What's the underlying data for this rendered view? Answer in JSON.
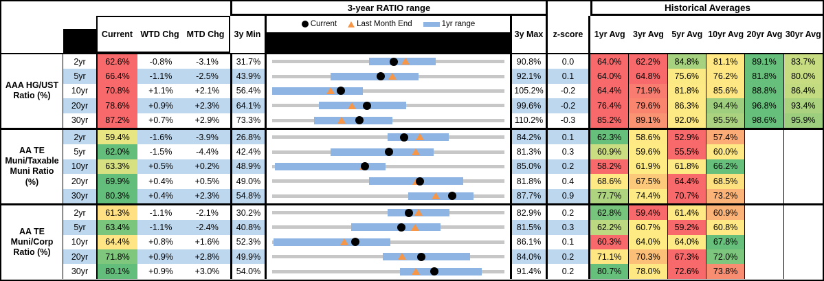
{
  "header": {
    "ratio_range_title": "3-year RATIO range",
    "historical_title": "Historical Averages",
    "col_current": "Current",
    "col_wtd": "WTD Chg",
    "col_mtd": "MTD Chg",
    "col_3y_min": "3y Min",
    "col_3y_max": "3y Max",
    "col_zscore": "z-score",
    "avg_cols": [
      "1yr Avg",
      "3yr Avg",
      "5yr Avg",
      "10yr Avg",
      "20yr Avg",
      "30yr Avg"
    ]
  },
  "legend": [
    {
      "marker": "black-dot",
      "label": "Current"
    },
    {
      "marker": "orange-triangle",
      "label": "Last Month End"
    },
    {
      "marker": "blue-bar",
      "label": "1yr range"
    }
  ],
  "colors": {
    "row_banding": "#BDD7EE",
    "range_line": "#C7C7C7",
    "one_year_bar": "#8DB4E2",
    "current_dot": "#000000",
    "last_month_triangle": "#F79646"
  },
  "chart_data": {
    "type": "table",
    "note": "Each row embeds a dot-range plot: gray line spans 3y Min..3y Max, blue bar is 1yr range, black dot is Current, orange triangle is Last Month End. Numeric chart values are in percent.",
    "sections": [
      {
        "label": "AAA HG/UST Ratio (%)",
        "label_lines": [
          "AAA HG/UST",
          "Ratio (%)"
        ],
        "rows": [
          {
            "tenor": "2yr",
            "current": "62.6%",
            "current_color": "#F8696B",
            "wtd": "-0.8%",
            "mtd": "-3.1%",
            "min3y": "31.7%",
            "max3y": "90.8%",
            "zscore": "0.0",
            "chart": {
              "min": 31.7,
              "max": 90.8,
              "lo": 56.3,
              "hi": 73.3,
              "dot": 62.6,
              "tri": 65.7
            },
            "avgs": [
              {
                "t": "64.0%",
                "c": "#F8696B"
              },
              {
                "t": "62.2%",
                "c": "#F8696B"
              },
              {
                "t": "84.8%",
                "c": "#A6D17F"
              },
              {
                "t": "81.1%",
                "c": "#FFE884"
              },
              {
                "t": "89.1%",
                "c": "#66C07B"
              },
              {
                "t": "83.7%",
                "c": "#C7DC81"
              }
            ]
          },
          {
            "tenor": "5yr",
            "current": "66.4%",
            "current_color": "#F8696B",
            "wtd": "-1.1%",
            "mtd": "-2.5%",
            "min3y": "43.9%",
            "max3y": "92.1%",
            "zscore": "0.1",
            "chart": {
              "min": 43.9,
              "max": 92.1,
              "lo": 56.0,
              "hi": 74.3,
              "dot": 66.4,
              "tri": 68.9
            },
            "avgs": [
              {
                "t": "64.0%",
                "c": "#F8696B"
              },
              {
                "t": "64.8%",
                "c": "#F8696B"
              },
              {
                "t": "75.6%",
                "c": "#FBE983"
              },
              {
                "t": "76.2%",
                "c": "#FFE884"
              },
              {
                "t": "81.8%",
                "c": "#66C07B"
              },
              {
                "t": "80.0%",
                "c": "#C7DC81"
              }
            ]
          },
          {
            "tenor": "10yr",
            "current": "70.8%",
            "current_color": "#F8696B",
            "wtd": "+1.1%",
            "mtd": "+2.1%",
            "min3y": "56.4%",
            "max3y": "105.2%",
            "zscore": "-0.2",
            "chart": {
              "min": 56.4,
              "max": 105.2,
              "lo": 56.4,
              "hi": 75.5,
              "dot": 70.8,
              "tri": 68.7
            },
            "avgs": [
              {
                "t": "64.4%",
                "c": "#F8696B"
              },
              {
                "t": "71.9%",
                "c": "#F87D70"
              },
              {
                "t": "81.8%",
                "c": "#FDEA84"
              },
              {
                "t": "85.6%",
                "c": "#FFE884"
              },
              {
                "t": "88.8%",
                "c": "#66C07B"
              },
              {
                "t": "86.4%",
                "c": "#C2DA80"
              }
            ]
          },
          {
            "tenor": "20yr",
            "current": "78.6%",
            "current_color": "#F8696B",
            "wtd": "+0.9%",
            "mtd": "+2.3%",
            "min3y": "64.1%",
            "max3y": "99.6%",
            "zscore": "-0.2",
            "chart": {
              "min": 64.1,
              "max": 99.6,
              "lo": 71.2,
              "hi": 84.6,
              "dot": 78.6,
              "tri": 76.3
            },
            "avgs": [
              {
                "t": "76.4%",
                "c": "#F8696B"
              },
              {
                "t": "79.6%",
                "c": "#F9856F"
              },
              {
                "t": "86.3%",
                "c": "#FDEA84"
              },
              {
                "t": "94.4%",
                "c": "#9FCF7E"
              },
              {
                "t": "96.8%",
                "c": "#66C07B"
              },
              {
                "t": "93.4%",
                "c": "#AAD27F"
              }
            ]
          },
          {
            "tenor": "30yr",
            "current": "87.2%",
            "current_color": "#F8696B",
            "wtd": "+0.7%",
            "mtd": "+2.9%",
            "min3y": "73.3%",
            "max3y": "110.2%",
            "zscore": "-0.3",
            "chart": {
              "min": 73.3,
              "max": 110.2,
              "lo": 80.0,
              "hi": 92.4,
              "dot": 87.2,
              "tri": 84.3
            },
            "avgs": [
              {
                "t": "85.2%",
                "c": "#F8696B"
              },
              {
                "t": "89.1%",
                "c": "#FA9372"
              },
              {
                "t": "92.0%",
                "c": "#FDEA84"
              },
              {
                "t": "95.5%",
                "c": "#ABD37F"
              },
              {
                "t": "98.6%",
                "c": "#66C07B"
              },
              {
                "t": "95.9%",
                "c": "#9CCE7E"
              }
            ]
          }
        ]
      },
      {
        "label": "AA TE Muni/Taxable Muni Ratio (%)",
        "label_lines": [
          "AA TE",
          "Muni/Taxable",
          "Muni Ratio",
          "(%)"
        ],
        "rows": [
          {
            "tenor": "2yr",
            "current": "59.4%",
            "current_color": "#E8E583",
            "wtd": "-1.6%",
            "mtd": "-3.9%",
            "min3y": "26.8%",
            "max3y": "84.2%",
            "zscore": "0.1",
            "chart": {
              "min": 26.8,
              "max": 84.2,
              "lo": 55.3,
              "hi": 70.4,
              "dot": 59.4,
              "tri": 63.3
            },
            "avgs": [
              {
                "t": "62.3%",
                "c": "#66C07B"
              },
              {
                "t": "58.6%",
                "c": "#FFE984"
              },
              {
                "t": "52.9%",
                "c": "#F8696B"
              },
              {
                "t": "57.4%",
                "c": "#FBAC76"
              },
              null,
              null
            ]
          },
          {
            "tenor": "5yr",
            "current": "62.0%",
            "current_color": "#63BE7B",
            "wtd": "-1.5%",
            "mtd": "-4.4%",
            "min3y": "42.4%",
            "max3y": "81.3%",
            "zscore": "0.3",
            "chart": {
              "min": 42.4,
              "max": 81.3,
              "lo": 52.2,
              "hi": 69.4,
              "dot": 62.0,
              "tri": 66.4
            },
            "avgs": [
              {
                "t": "60.9%",
                "c": "#CBDD81"
              },
              {
                "t": "59.6%",
                "c": "#FFEB84"
              },
              {
                "t": "55.5%",
                "c": "#F8696B"
              },
              {
                "t": "60.0%",
                "c": "#FFE984"
              },
              null,
              null
            ]
          },
          {
            "tenor": "10yr",
            "current": "63.3%",
            "current_color": "#D7E182",
            "wtd": "+0.5%",
            "mtd": "+0.2%",
            "min3y": "48.9%",
            "max3y": "85.0%",
            "zscore": "0.2",
            "chart": {
              "min": 48.9,
              "max": 85.0,
              "lo": 49.3,
              "hi": 66.5,
              "dot": 63.3,
              "tri": 63.1
            },
            "avgs": [
              {
                "t": "58.2%",
                "c": "#F8696B"
              },
              {
                "t": "61.9%",
                "c": "#FFEB84"
              },
              {
                "t": "61.8%",
                "c": "#FDEA84"
              },
              {
                "t": "66.2%",
                "c": "#66C07B"
              },
              null,
              null
            ]
          },
          {
            "tenor": "20yr",
            "current": "69.9%",
            "current_color": "#63BE7B",
            "wtd": "+0.4%",
            "mtd": "+0.5%",
            "min3y": "49.0%",
            "max3y": "81.8%",
            "zscore": "0.4",
            "chart": {
              "min": 49.0,
              "max": 81.8,
              "lo": 62.7,
              "hi": 76.0,
              "dot": 69.9,
              "tri": 69.4
            },
            "avgs": [
              {
                "t": "68.6%",
                "c": "#FFE984"
              },
              {
                "t": "67.5%",
                "c": "#FCC97A"
              },
              {
                "t": "64.4%",
                "c": "#F8696B"
              },
              {
                "t": "68.5%",
                "c": "#FDE17F"
              },
              null,
              null
            ]
          },
          {
            "tenor": "30yr",
            "current": "80.3%",
            "current_color": "#63BE7B",
            "wtd": "+0.4%",
            "mtd": "+2.3%",
            "min3y": "54.8%",
            "max3y": "87.7%",
            "zscore": "0.9",
            "chart": {
              "min": 54.8,
              "max": 87.7,
              "lo": 74.1,
              "hi": 83.3,
              "dot": 80.3,
              "tri": 78.0
            },
            "avgs": [
              {
                "t": "77.7%",
                "c": "#AFD47F"
              },
              {
                "t": "74.4%",
                "c": "#FDEA84"
              },
              {
                "t": "70.7%",
                "c": "#F8696B"
              },
              {
                "t": "73.2%",
                "c": "#FBB377"
              },
              null,
              null
            ]
          }
        ]
      },
      {
        "label": "AA TE Muni/Corp Ratio (%)",
        "label_lines": [
          "AA TE",
          "Muni/Corp",
          "Ratio (%)"
        ],
        "rows": [
          {
            "tenor": "2yr",
            "current": "61.3%",
            "current_color": "#FFE083",
            "wtd": "-1.1%",
            "mtd": "-2.1%",
            "min3y": "30.2%",
            "max3y": "82.9%",
            "zscore": "0.2",
            "chart": {
              "min": 30.2,
              "max": 82.9,
              "lo": 56.4,
              "hi": 70.5,
              "dot": 61.3,
              "tri": 63.4
            },
            "avgs": [
              {
                "t": "62.8%",
                "c": "#77C57D"
              },
              {
                "t": "59.4%",
                "c": "#F8696B"
              },
              {
                "t": "61.4%",
                "c": "#FFE984"
              },
              {
                "t": "60.9%",
                "c": "#FBB377"
              },
              null,
              null
            ]
          },
          {
            "tenor": "5yr",
            "current": "63.4%",
            "current_color": "#7AC67D",
            "wtd": "-1.1%",
            "mtd": "-2.4%",
            "min3y": "40.8%",
            "max3y": "81.5%",
            "zscore": "0.3",
            "chart": {
              "min": 40.8,
              "max": 81.5,
              "lo": 54.7,
              "hi": 70.3,
              "dot": 63.4,
              "tri": 65.8
            },
            "avgs": [
              {
                "t": "62.2%",
                "c": "#BCD880"
              },
              {
                "t": "60.7%",
                "c": "#FFEB84"
              },
              {
                "t": "59.2%",
                "c": "#F8696B"
              },
              {
                "t": "60.8%",
                "c": "#FFE984"
              },
              null,
              null
            ]
          },
          {
            "tenor": "10yr",
            "current": "64.4%",
            "current_color": "#FFE583",
            "wtd": "+0.8%",
            "mtd": "+1.6%",
            "min3y": "52.3%",
            "max3y": "86.1%",
            "zscore": "0.1",
            "chart": {
              "min": 52.3,
              "max": 86.1,
              "lo": 52.5,
              "hi": 69.5,
              "dot": 64.4,
              "tri": 62.8
            },
            "avgs": [
              {
                "t": "60.3%",
                "c": "#F8696B"
              },
              {
                "t": "64.0%",
                "c": "#FFEB84"
              },
              {
                "t": "64.0%",
                "c": "#FDEA84"
              },
              {
                "t": "67.8%",
                "c": "#66C07B"
              },
              null,
              null
            ]
          },
          {
            "tenor": "20yr",
            "current": "71.8%",
            "current_color": "#7EC77D",
            "wtd": "+0.9%",
            "mtd": "+2.8%",
            "min3y": "49.9%",
            "max3y": "84.0%",
            "zscore": "0.2",
            "chart": {
              "min": 49.9,
              "max": 84.0,
              "lo": 66.1,
              "hi": 79.0,
              "dot": 71.8,
              "tri": 69.0
            },
            "avgs": [
              {
                "t": "71.1%",
                "c": "#FEE683"
              },
              {
                "t": "70.3%",
                "c": "#FCBF78"
              },
              {
                "t": "67.3%",
                "c": "#F8696B"
              },
              {
                "t": "72.0%",
                "c": "#7CC77D"
              },
              null,
              null
            ]
          },
          {
            "tenor": "30yr",
            "current": "80.1%",
            "current_color": "#63BE7B",
            "wtd": "+0.9%",
            "mtd": "+3.0%",
            "min3y": "54.0%",
            "max3y": "91.4%",
            "zscore": "0.2",
            "chart": {
              "min": 54.0,
              "max": 91.4,
              "lo": 74.6,
              "hi": 87.8,
              "dot": 80.1,
              "tri": 77.1
            },
            "avgs": [
              {
                "t": "80.7%",
                "c": "#66C07B"
              },
              {
                "t": "78.0%",
                "c": "#FEE883"
              },
              {
                "t": "72.6%",
                "c": "#F8696B"
              },
              {
                "t": "73.8%",
                "c": "#F98D71"
              },
              null,
              null
            ]
          }
        ]
      }
    ]
  }
}
